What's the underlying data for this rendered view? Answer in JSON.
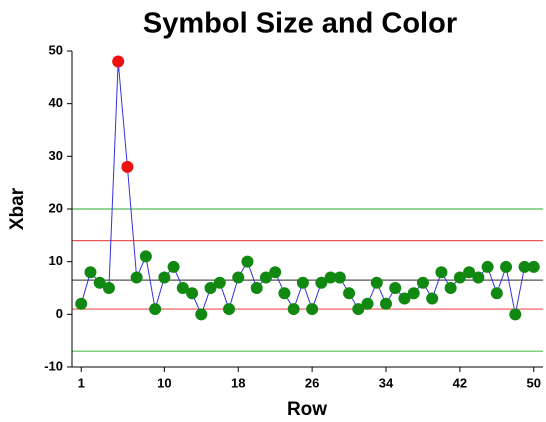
{
  "chart_data": {
    "type": "line",
    "title": "Symbol Size and Color",
    "x_label": "Row",
    "y_label": "Xbar",
    "x": [
      1,
      2,
      3,
      4,
      5,
      6,
      7,
      8,
      9,
      10,
      11,
      12,
      13,
      14,
      15,
      16,
      17,
      18,
      19,
      20,
      21,
      22,
      23,
      24,
      25,
      26,
      27,
      28,
      29,
      30,
      31,
      32,
      33,
      34,
      35,
      36,
      37,
      38,
      39,
      40,
      41,
      42,
      43,
      44,
      45,
      46,
      47,
      48,
      49,
      50
    ],
    "series": [
      {
        "name": "Xbar",
        "color": "#3333dd",
        "values": [
          2,
          8,
          6,
          5,
          48,
          28,
          7,
          11,
          1,
          7,
          9,
          5,
          4,
          0,
          5,
          6,
          1,
          7,
          10,
          5,
          7,
          8,
          4,
          1,
          6,
          1,
          6,
          7,
          7,
          4,
          1,
          2,
          6,
          2,
          5,
          3,
          4,
          6,
          3,
          8,
          5,
          7,
          8,
          7,
          9,
          4,
          9,
          0,
          9,
          9
        ],
        "marker_colors": [
          "#118811",
          "#118811",
          "#118811",
          "#118811",
          "#ee1111",
          "#ee1111",
          "#118811",
          "#118811",
          "#118811",
          "#118811",
          "#118811",
          "#118811",
          "#118811",
          "#118811",
          "#118811",
          "#118811",
          "#118811",
          "#118811",
          "#118811",
          "#118811",
          "#118811",
          "#118811",
          "#118811",
          "#118811",
          "#118811",
          "#118811",
          "#118811",
          "#118811",
          "#118811",
          "#118811",
          "#118811",
          "#118811",
          "#118811",
          "#118811",
          "#118811",
          "#118811",
          "#118811",
          "#118811",
          "#118811",
          "#118811",
          "#118811",
          "#118811",
          "#118811",
          "#118811",
          "#118811",
          "#118811",
          "#118811",
          "#118811",
          "#118811",
          "#118811"
        ]
      }
    ],
    "reference_lines": [
      {
        "value": 20,
        "color": "#55bb55"
      },
      {
        "value": 14,
        "color": "#ee5555"
      },
      {
        "value": 6.5,
        "color": "#555555"
      },
      {
        "value": 1,
        "color": "#ee5555"
      },
      {
        "value": -7,
        "color": "#55bb55"
      }
    ],
    "xlim": [
      0,
      51
    ],
    "xticks": [
      1,
      10,
      18,
      26,
      34,
      42,
      50
    ],
    "ylim": [
      -10,
      50
    ],
    "yticks": [
      -10,
      0,
      10,
      20,
      30,
      40,
      50
    ]
  }
}
